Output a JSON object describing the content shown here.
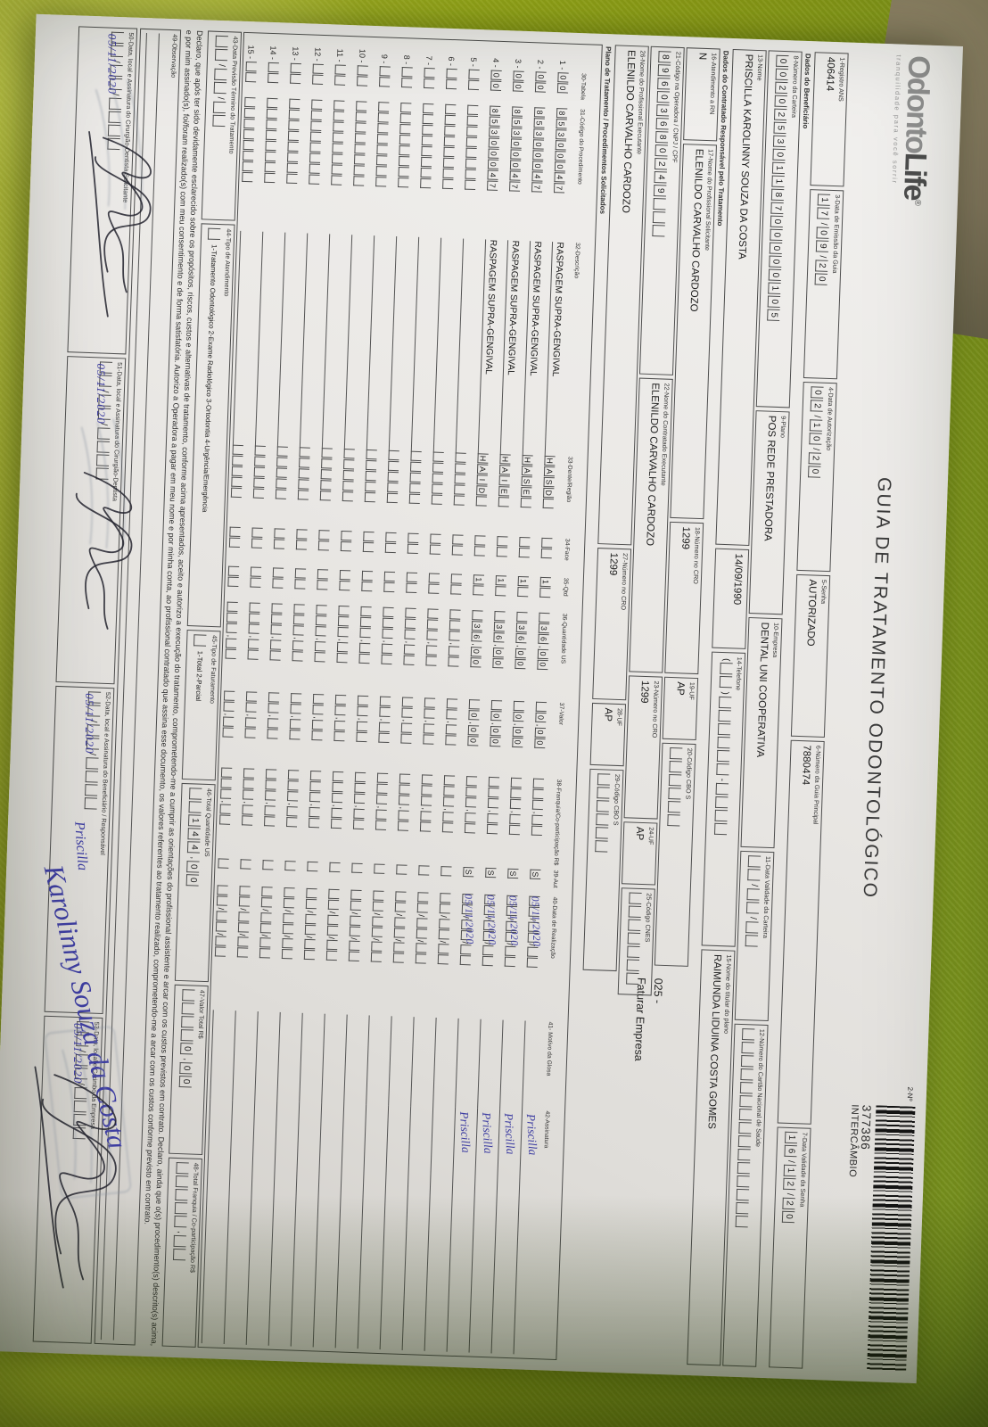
{
  "colors": {
    "background_green": "#aec31c",
    "paper": "#eae8e5",
    "ink": "#2b2b2b",
    "handwriting_blue": "#3e3ea2"
  },
  "form": {
    "logo": {
      "part1": "Odonto",
      "part2": "Life",
      "reg": "®",
      "tagline": "tranquilidade para você sorrir"
    },
    "title": "GUIA DE TRATAMENTO ODONTOLÓGICO",
    "doc_number": {
      "label": "2-Nº",
      "value": "377386",
      "subvalue": "INTERCÂMBIO"
    },
    "sections": {
      "beneficiario": "Dados do Beneficiário",
      "contratado": "Dados do Contratado Responsável pelo Tratamento",
      "plano": "Plano de Tratamento / Procedimentos Solicitados"
    },
    "fields": {
      "f1": {
        "label": "1-Registro ANS",
        "value": "406414"
      },
      "f3": {
        "label": "3-Data de Emissão da Guia",
        "value": "17/09/20"
      },
      "f4": {
        "label": "4-Data de Autorização",
        "value": "02/10/20"
      },
      "f5": {
        "label": "5-Senha",
        "value": "AUTORIZADO"
      },
      "f6": {
        "label": "6-Número da Guia Principal",
        "value": "7880474"
      },
      "f7": {
        "label": "7-Data Validade da Senha",
        "value": "16/12/20"
      },
      "f8": {
        "label": "8-Número da Carteira",
        "value": "00202530118700000105"
      },
      "f9": {
        "label": "9-Plano",
        "value": "POS REDE PRESTADORA"
      },
      "f10": {
        "label": "10-Empresa",
        "value": "DENTAL UNI  COOPERATIVA"
      },
      "f11": {
        "label": "11-Data Validade da Carteira",
        "value": "  /  /  "
      },
      "f12": {
        "label": "12-Número do Cartão Nacional de Saúde",
        "value": "               "
      },
      "f13": {
        "label": "13-Nome",
        "value": "PRISCILLA KAROLINNY SOUZA DA COSTA"
      },
      "f13b": {
        "value": "14/09/1990"
      },
      "f14": {
        "label": "14-Telefone",
        "value": "(  )      -    "
      },
      "f15": {
        "label": "15-Nome do titular do plano",
        "value": "RAIMUNDA LIDUINA COSTA GOMES"
      },
      "f16": {
        "label": "16-Atendimento a RN",
        "value": "N"
      },
      "f17": {
        "label": "17-Nome do Profissional Solicitante",
        "value": "ELENILDO CARVALHO CARDOZO"
      },
      "f18": {
        "label": "18-Número no CRO",
        "value": "1299"
      },
      "f19": {
        "label": "19-UF",
        "value": "AP"
      },
      "f20": {
        "label": "20-Código CBO S",
        "value": "      "
      },
      "f21": {
        "label": "21-Código na Operadora / CNPJ / CPF",
        "value": "89603680249   "
      },
      "f22": {
        "label": "22-Nome do Contratado Executante",
        "value": "ELENILDO CARVALHO CARDOZO"
      },
      "f23": {
        "label": "23-Número no CRO",
        "value": "1299"
      },
      "f24": {
        "label": "24-UF",
        "value": "AP"
      },
      "f25": {
        "label": "25-Código CNES",
        "value": "       "
      },
      "f26": {
        "label": "26-Nome do Profissional Executante",
        "value": "ELENILDO CARVALHO CARDOZO"
      },
      "f27": {
        "label": "27-Número no CRO",
        "value": "1299"
      },
      "f28": {
        "label": "28-UF",
        "value": "AP"
      },
      "f29": {
        "label": "29-Código CBO S",
        "value": "      "
      },
      "f43": {
        "label": "43-Data Previsão Término do Tratamento",
        "value": "  /  /  "
      },
      "f44": {
        "label": "44-Tipo de Atendimento",
        "value": " ",
        "options": "1-Tratamento Odontológico   2-Exame Radiológico   3-Ortodontia   4-Urgência/Emergência"
      },
      "f45": {
        "label": "45-Tipo de Faturamento",
        "value": " ",
        "options": "1-Total   2-Parcial"
      },
      "f46": {
        "label": "46-Total Quantidade US",
        "value": "  144,00"
      },
      "f47": {
        "label": "47-Valor Total R$",
        "value": "    0,00"
      },
      "f48": {
        "label": "48-Total Franquia / Co-participação R$",
        "value": "     ,  "
      },
      "f49": {
        "label": "49-Observação"
      }
    },
    "margin_note": {
      "line1": "025 -",
      "line2": "Faturar Empresa"
    },
    "table": {
      "headers": {
        "h30": "30-Tabela",
        "h31": "31-Código do Procedimento",
        "h32": "32-Descrição",
        "h33": "33-Dente/Região",
        "h34": "34-Face",
        "h35": "35-Qtd",
        "h36": "36-Quantidade US",
        "h37": "37-Valor",
        "h38": "38-Franquia/Co-participação R$",
        "h39": "39-Aut",
        "h40": "40-Data de Realização",
        "h41": "41- Motivo da Glosa",
        "h42": "42-Assinatura"
      },
      "rows": [
        {
          "n": "1",
          "tab": "00",
          "code": "85300047",
          "desc": "RASPAGEM SUPRA-GENGIVAL",
          "dente": "HASD",
          "face": "",
          "qtd": "1",
          "qus": "36,00",
          "valor": "0,00",
          "franq": "",
          "aut": "S",
          "data": "05/11/2020",
          "glosa": "",
          "sig": "Priscilla"
        },
        {
          "n": "2",
          "tab": "00",
          "code": "85300047",
          "desc": "RASPAGEM SUPRA-GENGIVAL",
          "dente": "HASE",
          "face": "",
          "qtd": "1",
          "qus": "36,00",
          "valor": "0,00",
          "franq": "",
          "aut": "S",
          "data": "05/11/2020",
          "glosa": "",
          "sig": "Priscilla"
        },
        {
          "n": "3",
          "tab": "00",
          "code": "85300047",
          "desc": "RASPAGEM SUPRA-GENGIVAL",
          "dente": "HAIE",
          "face": "",
          "qtd": "1",
          "qus": "36,00",
          "valor": "0,00",
          "franq": "",
          "aut": "S",
          "data": "05/11/2020",
          "glosa": "",
          "sig": "Priscilla"
        },
        {
          "n": "4",
          "tab": "00",
          "code": "85300047",
          "desc": "RASPAGEM SUPRA-GENGIVAL",
          "dente": "HAID",
          "face": "",
          "qtd": "1",
          "qus": "36,00",
          "valor": "0,00",
          "franq": "",
          "aut": "S",
          "data": "05/11/2020",
          "glosa": "",
          "sig": "Priscilla"
        },
        {
          "n": "5",
          "tab": "",
          "code": "",
          "desc": "",
          "dente": "",
          "face": "",
          "qtd": "",
          "qus": "",
          "valor": "",
          "franq": "",
          "aut": "",
          "data": "",
          "glosa": "",
          "sig": ""
        },
        {
          "n": "6",
          "tab": "",
          "code": "",
          "desc": "",
          "dente": "",
          "face": "",
          "qtd": "",
          "qus": "",
          "valor": "",
          "franq": "",
          "aut": "",
          "data": "",
          "glosa": "",
          "sig": ""
        },
        {
          "n": "7",
          "tab": "",
          "code": "",
          "desc": "",
          "dente": "",
          "face": "",
          "qtd": "",
          "qus": "",
          "valor": "",
          "franq": "",
          "aut": "",
          "data": "",
          "glosa": "",
          "sig": ""
        },
        {
          "n": "8",
          "tab": "",
          "code": "",
          "desc": "",
          "dente": "",
          "face": "",
          "qtd": "",
          "qus": "",
          "valor": "",
          "franq": "",
          "aut": "",
          "data": "",
          "glosa": "",
          "sig": ""
        },
        {
          "n": "9",
          "tab": "",
          "code": "",
          "desc": "",
          "dente": "",
          "face": "",
          "qtd": "",
          "qus": "",
          "valor": "",
          "franq": "",
          "aut": "",
          "data": "",
          "glosa": "",
          "sig": ""
        },
        {
          "n": "10",
          "tab": "",
          "code": "",
          "desc": "",
          "dente": "",
          "face": "",
          "qtd": "",
          "qus": "",
          "valor": "",
          "franq": "",
          "aut": "",
          "data": "",
          "glosa": "",
          "sig": ""
        },
        {
          "n": "11",
          "tab": "",
          "code": "",
          "desc": "",
          "dente": "",
          "face": "",
          "qtd": "",
          "qus": "",
          "valor": "",
          "franq": "",
          "aut": "",
          "data": "",
          "glosa": "",
          "sig": ""
        },
        {
          "n": "12",
          "tab": "",
          "code": "",
          "desc": "",
          "dente": "",
          "face": "",
          "qtd": "",
          "qus": "",
          "valor": "",
          "franq": "",
          "aut": "",
          "data": "",
          "glosa": "",
          "sig": ""
        },
        {
          "n": "13",
          "tab": "",
          "code": "",
          "desc": "",
          "dente": "",
          "face": "",
          "qtd": "",
          "qus": "",
          "valor": "",
          "franq": "",
          "aut": "",
          "data": "",
          "glosa": "",
          "sig": ""
        },
        {
          "n": "14",
          "tab": "",
          "code": "",
          "desc": "",
          "dente": "",
          "face": "",
          "qtd": "",
          "qus": "",
          "valor": "",
          "franq": "",
          "aut": "",
          "data": "",
          "glosa": "",
          "sig": ""
        },
        {
          "n": "15",
          "tab": "",
          "code": "",
          "desc": "",
          "dente": "",
          "face": "",
          "qtd": "",
          "qus": "",
          "valor": "",
          "franq": "",
          "aut": "",
          "data": "",
          "glosa": "",
          "sig": ""
        }
      ]
    },
    "declaration": "Declaro, que após ter sido devidamente esclarecido sobre os propósitos, riscos, custos e alternativas de tratamento, conforme acima apresentados, aceito e autorizo a execução do tratamento, comprometendo-me a cumprir as orientações do profissional assistente e arcar com os custos previstos em contrato. Declaro, ainda que o(s) procedimento(s) descrito(s) acima, e por mim assinado(s), foi/foram realizado(s) com meu consentimento e de forma satisfatória. Autorizo a Operadora a pagar em meu nome e por minha conta, ao profissional contratado que assina esse documento, os valores referentes ao tratamento realizado, comprometendo-me a arcar com os custos conforme previsto em contrato.",
    "signatures": [
      {
        "label": "50-Data, local e Assinatura do Cirurgião-Dentista Solicitante",
        "date": "05/11/2020"
      },
      {
        "label": "51-Data, local e Assinatura do Cirurgião-Dentista",
        "date": "05/11/2020"
      },
      {
        "label": "52-Data, local e Assinatura do Beneficiário / Responsável",
        "date": "05/11/2020",
        "signature": "Priscilla"
      },
      {
        "label": "53-Data, local e Carimbo da Empresa",
        "date": "05/11/2020"
      }
    ],
    "handwriting": {
      "beneficiary_signature": "Karolinny Souza da Costa"
    }
  }
}
